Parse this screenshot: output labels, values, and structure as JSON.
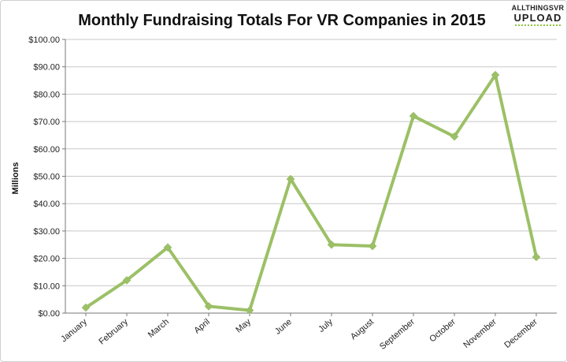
{
  "logo": {
    "line1": "ALLTHINGSVR",
    "line2": "UPLOAD"
  },
  "chart_data": {
    "type": "line",
    "title": "Monthly Fundraising Totals For VR Companies in 2015",
    "xlabel": "",
    "ylabel": "Millions",
    "categories": [
      "January",
      "February",
      "March",
      "April",
      "May",
      "June",
      "July",
      "August",
      "September",
      "October",
      "November",
      "December"
    ],
    "series": [
      {
        "values": [
          2.0,
          12.0,
          24.0,
          2.5,
          1.0,
          49.0,
          25.0,
          24.5,
          72.0,
          64.5,
          87.0,
          20.5
        ]
      }
    ],
    "ylim": [
      0,
      100
    ],
    "yticks": [
      0,
      10,
      20,
      30,
      40,
      50,
      60,
      70,
      80,
      90,
      100
    ],
    "ytick_labels": [
      "$0.00",
      "$10.00",
      "$20.00",
      "$30.00",
      "$40.00",
      "$50.00",
      "$60.00",
      "$70.00",
      "$80.00",
      "$90.00",
      "$100.00"
    ],
    "grid": true,
    "legend": "none",
    "colors": {
      "line": "#9cc066",
      "marker": "#9cc066",
      "grid": "#c8c8c8",
      "axis": "#777777",
      "logo_accent": "#8dc63f"
    }
  }
}
